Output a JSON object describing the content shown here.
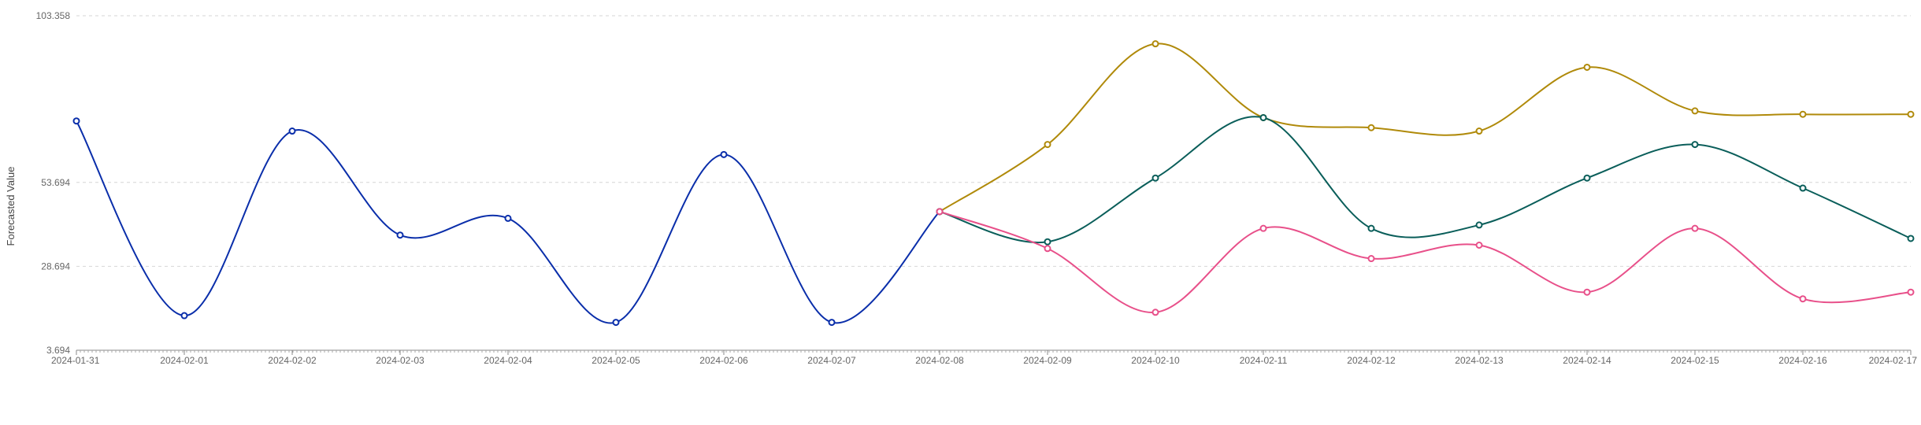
{
  "chart_data": {
    "type": "line",
    "ylabel": "Forecasted Value",
    "xlabel": "",
    "ylim": [
      3.694,
      103.358
    ],
    "y_ticks": [
      "3.694",
      "28.694",
      "53.694",
      "103.358"
    ],
    "y_tick_values": [
      3.694,
      28.694,
      53.694,
      103.358
    ],
    "categories": [
      "2024-01-31",
      "2024-02-01",
      "2024-02-02",
      "2024-02-03",
      "2024-02-04",
      "2024-02-05",
      "2024-02-06",
      "2024-02-07",
      "2024-02-08",
      "2024-02-09",
      "2024-02-10",
      "2024-02-11",
      "2024-02-12",
      "2024-02-13",
      "2024-02-14",
      "2024-02-15",
      "2024-02-16",
      "2024-02-17"
    ],
    "grid": true,
    "series": [
      {
        "color": "#0a2eaa",
        "values": [
          72,
          14,
          69,
          38,
          43,
          12,
          62,
          12,
          45,
          null,
          null,
          null,
          null,
          null,
          null,
          null,
          null,
          null
        ]
      },
      {
        "color": "#b08a0a",
        "values": [
          null,
          null,
          null,
          null,
          null,
          null,
          null,
          null,
          45,
          65,
          95,
          73,
          70,
          69,
          88,
          75,
          74,
          74
        ]
      },
      {
        "color": "#0a5e5a",
        "values": [
          null,
          null,
          null,
          null,
          null,
          null,
          null,
          null,
          45,
          36,
          55,
          73,
          40,
          41,
          55,
          65,
          52,
          37
        ]
      },
      {
        "color": "#e8508a",
        "values": [
          null,
          null,
          null,
          null,
          null,
          null,
          null,
          null,
          45,
          34,
          15,
          40,
          31,
          35,
          21,
          40,
          19,
          21
        ]
      }
    ]
  }
}
